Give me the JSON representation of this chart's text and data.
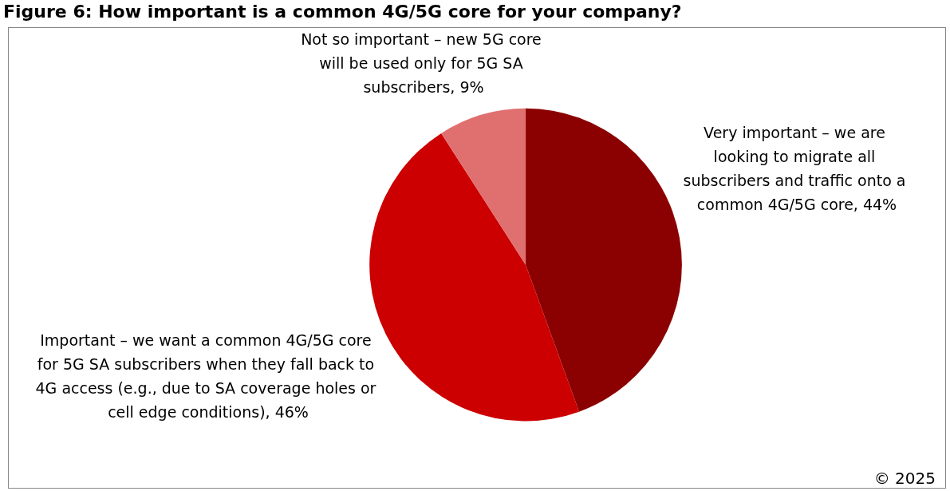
{
  "chart_data": {
    "type": "pie",
    "title": "Figure 6: How important is a common 4G/5G core for your company?",
    "categories": [
      "Very important – we are looking to migrate all subscribers and traffic onto a common 4G/5G core",
      "Important – we want a common 4G/5G core for 5G SA subscribers when they fall back to 4G access (e.g., due to SA coverage holes or cell edge conditions)",
      "Not so important – new 5G core will be used only for 5G SA subscribers"
    ],
    "values": [
      44,
      46,
      9
    ],
    "value_labels": [
      "44%",
      "46%",
      "9%"
    ],
    "colors": [
      "#8b0000",
      "#cc0000",
      "#e07070"
    ],
    "legend": false,
    "annotations": [
      "© 2025"
    ]
  }
}
